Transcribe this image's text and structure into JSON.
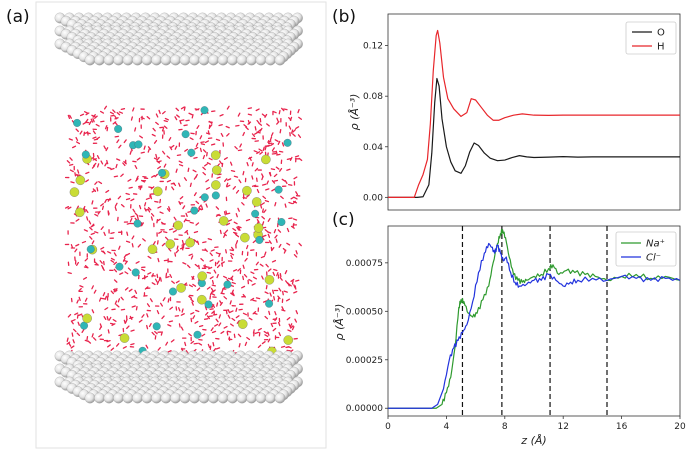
{
  "panels": {
    "a": "(a)",
    "b": "(b)",
    "c": "(c)"
  },
  "colors": {
    "O": "#1a1a1a",
    "H": "#e8262b",
    "Na": "#2e9a2e",
    "Cl": "#2233dd",
    "water": "#e8244d",
    "na_ion": "#c9dc35",
    "cl_ion": "#2fb6b6",
    "wall": "#d9d9d9"
  },
  "chart_data": [
    {
      "panel": "b",
      "type": "line",
      "xlim": [
        0,
        20
      ],
      "ylim": [
        -0.01,
        0.145
      ],
      "yticks": [
        0.0,
        0.04,
        0.08,
        0.12
      ],
      "ytick_labels": [
        "0.00",
        "0.04",
        "0.08",
        "0.12"
      ],
      "ylabel": "ρ (Å⁻³)",
      "xlabel": "",
      "legend": "top-right",
      "series": [
        {
          "name": "O",
          "x": [
            0,
            2.0,
            2.4,
            2.8,
            3.0,
            3.2,
            3.35,
            3.5,
            3.7,
            4.0,
            4.3,
            4.6,
            5.0,
            5.3,
            5.6,
            5.9,
            6.2,
            6.6,
            7.0,
            7.5,
            8.0,
            8.5,
            9.0,
            9.5,
            10,
            11,
            12,
            13,
            14,
            16,
            18,
            20
          ],
          "y": [
            0,
            0,
            0.0005,
            0.01,
            0.035,
            0.075,
            0.094,
            0.088,
            0.062,
            0.04,
            0.028,
            0.021,
            0.019,
            0.025,
            0.036,
            0.043,
            0.041,
            0.035,
            0.031,
            0.029,
            0.0295,
            0.0315,
            0.033,
            0.032,
            0.0315,
            0.0318,
            0.0322,
            0.0318,
            0.032,
            0.032,
            0.032,
            0.032
          ]
        },
        {
          "name": "H",
          "x": [
            0,
            1.8,
            2.1,
            2.4,
            2.7,
            2.9,
            3.1,
            3.3,
            3.4,
            3.55,
            3.8,
            4.1,
            4.5,
            5.0,
            5.4,
            5.7,
            6.0,
            6.4,
            6.8,
            7.2,
            7.6,
            8.0,
            8.6,
            9.2,
            10,
            11,
            12,
            14,
            16,
            18,
            20
          ],
          "y": [
            0,
            0,
            0.01,
            0.018,
            0.03,
            0.058,
            0.1,
            0.128,
            0.132,
            0.122,
            0.095,
            0.078,
            0.07,
            0.064,
            0.067,
            0.078,
            0.077,
            0.071,
            0.065,
            0.061,
            0.061,
            0.063,
            0.065,
            0.066,
            0.065,
            0.0648,
            0.065,
            0.065,
            0.065,
            0.065,
            0.065
          ]
        }
      ]
    },
    {
      "panel": "c",
      "type": "line",
      "xlim": [
        0,
        20
      ],
      "ylim": [
        -4e-05,
        0.00094
      ],
      "xticks": [
        0,
        4,
        8,
        12,
        16,
        20
      ],
      "xtick_labels": [
        "0",
        "4",
        "8",
        "12",
        "16",
        "20"
      ],
      "yticks": [
        0,
        0.00025,
        0.0005,
        0.00075
      ],
      "ytick_labels": [
        "0.00000",
        "0.00025",
        "0.00050",
        "0.00075"
      ],
      "xlabel": "z (Å)",
      "ylabel": "ρ (Å⁻³)",
      "legend": "top-right",
      "vlines": [
        5.1,
        7.8,
        11.1,
        15.0
      ],
      "series": [
        {
          "name": "Na⁺",
          "x": [
            0,
            2.5,
            3.3,
            3.7,
            4.0,
            4.3,
            4.6,
            4.85,
            5.0,
            5.2,
            5.5,
            5.8,
            6.1,
            6.5,
            6.9,
            7.2,
            7.5,
            7.7,
            7.85,
            8.05,
            8.3,
            8.6,
            8.9,
            9.2,
            9.5,
            10.0,
            10.5,
            11.0,
            11.3,
            11.7,
            12.2,
            12.8,
            13.5,
            14.2,
            15.0,
            16.0,
            17.0,
            18.0,
            19.0,
            20.0
          ],
          "y": [
            0,
            0,
            0,
            2e-05,
            8e-05,
            0.00016,
            0.00032,
            0.00052,
            0.00056,
            0.00055,
            0.00049,
            0.00047,
            0.00049,
            0.00056,
            0.00063,
            0.00075,
            0.00085,
            0.0009,
            0.00092,
            0.00088,
            0.00078,
            0.00069,
            0.00066,
            0.00065,
            0.00066,
            0.00068,
            0.00069,
            0.00072,
            0.00074,
            0.00069,
            0.00071,
            0.0007,
            0.00069,
            0.00068,
            0.00066,
            0.00068,
            0.00069,
            0.00067,
            0.00068,
            0.00066
          ]
        },
        {
          "name": "Cl⁻",
          "x": [
            0,
            2.5,
            3.0,
            3.4,
            3.8,
            4.2,
            4.5,
            4.8,
            5.1,
            5.4,
            5.8,
            6.2,
            6.6,
            6.9,
            7.1,
            7.3,
            7.5,
            7.7,
            7.9,
            8.1,
            8.4,
            8.7,
            9.0,
            9.5,
            10.0,
            10.5,
            11.0,
            11.5,
            12.0,
            12.5,
            13.0,
            14.0,
            15.0,
            16.0,
            17.0,
            18.0,
            19.0,
            20.0
          ],
          "y": [
            0,
            0,
            0,
            2e-05,
            0.0001,
            0.00025,
            0.00031,
            0.00035,
            0.00039,
            0.00043,
            0.00055,
            0.0007,
            0.0008,
            0.00085,
            0.00083,
            0.0008,
            0.00084,
            0.0008,
            0.00076,
            0.00078,
            0.0007,
            0.00065,
            0.00063,
            0.00064,
            0.00066,
            0.00066,
            0.00069,
            0.00066,
            0.00063,
            0.00065,
            0.00066,
            0.00067,
            0.00066,
            0.00068,
            0.00067,
            0.00066,
            0.00067,
            0.00066
          ]
        }
      ]
    }
  ]
}
